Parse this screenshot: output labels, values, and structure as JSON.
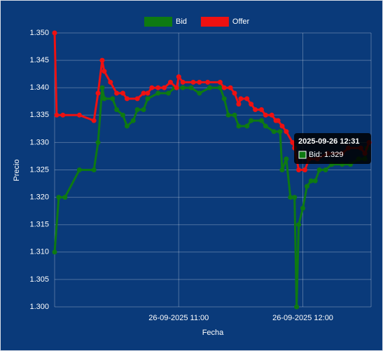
{
  "chart_data": {
    "type": "line",
    "x_label": "Fecha",
    "y_label": "Precio",
    "grid": true,
    "legend": "top",
    "xlim": [
      "26-09-2025 10:00",
      "26-09-2025 12:33"
    ],
    "xticks": [
      "26-09-2025 11:00",
      "26-09-2025 12:00"
    ],
    "ylim": [
      1.3,
      1.35
    ],
    "yticks": [
      {
        "value": 1.3,
        "label": "1.300"
      },
      1.305,
      {
        "value": 1.31,
        "label": "1.310"
      },
      1.315,
      {
        "value": 1.32,
        "label": "1.320"
      },
      1.325,
      {
        "value": 1.33,
        "label": "1.330"
      },
      1.335,
      {
        "value": 1.34,
        "label": "1.340"
      },
      1.345,
      {
        "value": 1.35,
        "label": "1.350"
      }
    ],
    "tooltip": {
      "title": "2025-09-26 12:31",
      "label": "Bid: 1.329"
    },
    "series": [
      {
        "name": "Bid",
        "color": "#0e7a12",
        "x": [
          "26-09-2025 10:00",
          "26-09-2025 10:02",
          "26-09-2025 10:05",
          "26-09-2025 10:12",
          "26-09-2025 10:19",
          "26-09-2025 10:21",
          "26-09-2025 10:23",
          "26-09-2025 10:24",
          "26-09-2025 10:28",
          "26-09-2025 10:30",
          "26-09-2025 10:33",
          "26-09-2025 10:35",
          "26-09-2025 10:38",
          "26-09-2025 10:40",
          "26-09-2025 10:43",
          "26-09-2025 10:45",
          "26-09-2025 10:50",
          "26-09-2025 10:55",
          "26-09-2025 10:58",
          "26-09-2025 11:02",
          "26-09-2025 11:06",
          "26-09-2025 11:10",
          "26-09-2025 11:15",
          "26-09-2025 11:20",
          "26-09-2025 11:22",
          "26-09-2025 11:24",
          "26-09-2025 11:27",
          "26-09-2025 11:29",
          "26-09-2025 11:33",
          "26-09-2025 11:35",
          "26-09-2025 11:40",
          "26-09-2025 11:42",
          "26-09-2025 11:46",
          "26-09-2025 11:49",
          "26-09-2025 11:50",
          "26-09-2025 11:52",
          "26-09-2025 11:54",
          "26-09-2025 11:56",
          "26-09-2025 11:57",
          "26-09-2025 11:58",
          "26-09-2025 12:00",
          "26-09-2025 12:02",
          "26-09-2025 12:04",
          "26-09-2025 12:06",
          "26-09-2025 12:08",
          "26-09-2025 12:11",
          "26-09-2025 12:14",
          "26-09-2025 12:19",
          "26-09-2025 12:23",
          "26-09-2025 12:27",
          "26-09-2025 12:30",
          "26-09-2025 12:31"
        ],
        "values": [
          1.31,
          1.32,
          1.32,
          1.325,
          1.325,
          1.33,
          1.34,
          1.338,
          1.338,
          1.336,
          1.335,
          1.333,
          1.334,
          1.336,
          1.336,
          1.338,
          1.339,
          1.339,
          1.34,
          1.34,
          1.34,
          1.339,
          1.34,
          1.34,
          1.338,
          1.335,
          1.335,
          1.333,
          1.333,
          1.334,
          1.334,
          1.333,
          1.332,
          1.332,
          1.325,
          1.327,
          1.32,
          1.32,
          1.3,
          1.315,
          1.318,
          1.322,
          1.323,
          1.323,
          1.325,
          1.325,
          1.326,
          1.326,
          1.326,
          1.327,
          1.327,
          1.329
        ]
      },
      {
        "name": "Offer",
        "color": "#ee1111",
        "x": [
          "26-09-2025 10:00",
          "26-09-2025 10:01",
          "26-09-2025 10:04",
          "26-09-2025 10:12",
          "26-09-2025 10:19",
          "26-09-2025 10:21",
          "26-09-2025 10:23",
          "26-09-2025 10:24",
          "26-09-2025 10:27",
          "26-09-2025 10:30",
          "26-09-2025 10:33",
          "26-09-2025 10:35",
          "26-09-2025 10:40",
          "26-09-2025 10:43",
          "26-09-2025 10:45",
          "26-09-2025 10:47",
          "26-09-2025 10:50",
          "26-09-2025 10:53",
          "26-09-2025 10:56",
          "26-09-2025 10:59",
          "26-09-2025 11:00",
          "26-09-2025 11:02",
          "26-09-2025 11:07",
          "26-09-2025 11:10",
          "26-09-2025 11:14",
          "26-09-2025 11:20",
          "26-09-2025 11:22",
          "26-09-2025 11:25",
          "26-09-2025 11:27",
          "26-09-2025 11:29",
          "26-09-2025 11:30",
          "26-09-2025 11:33",
          "26-09-2025 11:35",
          "26-09-2025 11:37",
          "26-09-2025 11:40",
          "26-09-2025 11:42",
          "26-09-2025 11:45",
          "26-09-2025 11:47",
          "26-09-2025 11:48",
          "26-09-2025 11:50",
          "26-09-2025 11:52",
          "26-09-2025 11:55",
          "26-09-2025 11:56",
          "26-09-2025 11:58",
          "26-09-2025 12:01",
          "26-09-2025 12:03",
          "26-09-2025 12:07",
          "26-09-2025 12:12",
          "26-09-2025 12:19",
          "26-09-2025 12:22",
          "26-09-2025 12:28",
          "26-09-2025 12:30",
          "26-09-2025 12:32"
        ],
        "values": [
          1.35,
          1.335,
          1.335,
          1.335,
          1.334,
          1.339,
          1.345,
          1.343,
          1.341,
          1.339,
          1.339,
          1.338,
          1.338,
          1.339,
          1.339,
          1.34,
          1.34,
          1.34,
          1.341,
          1.34,
          1.342,
          1.341,
          1.341,
          1.341,
          1.341,
          1.341,
          1.34,
          1.34,
          1.339,
          1.337,
          1.338,
          1.338,
          1.337,
          1.336,
          1.336,
          1.335,
          1.335,
          1.334,
          1.334,
          1.333,
          1.332,
          1.33,
          1.329,
          1.325,
          1.325,
          1.327,
          1.327,
          1.328,
          1.328,
          1.329,
          1.329,
          1.328,
          1.33
        ]
      }
    ]
  }
}
